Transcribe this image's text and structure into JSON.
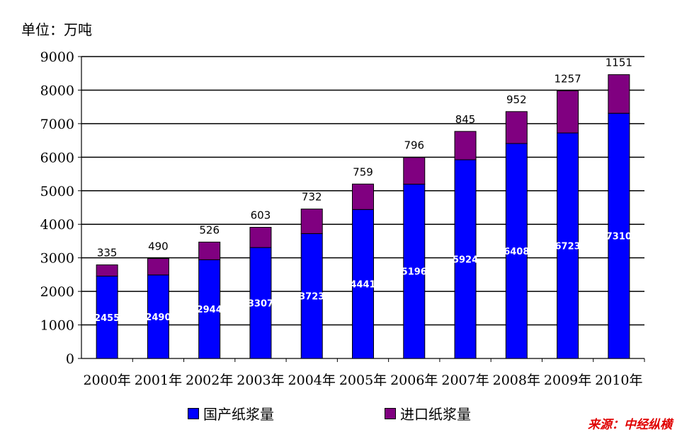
{
  "chart_data": {
    "type": "bar",
    "stacked": true,
    "unit": "单位：万吨",
    "categories": [
      "2000年",
      "2001年",
      "2002年",
      "2003年",
      "2004年",
      "2005年",
      "2006年",
      "2007年",
      "2008年",
      "2009年",
      "2010年"
    ],
    "series": [
      {
        "name": "国产纸浆量",
        "color": "#0000ff",
        "values": [
          2455,
          2490,
          2944,
          3307,
          3723,
          4441,
          5196,
          5924,
          6408,
          6723,
          7310
        ]
      },
      {
        "name": "进口纸浆量",
        "color": "#800080",
        "values": [
          335,
          490,
          526,
          603,
          732,
          759,
          796,
          845,
          952,
          1257,
          1151
        ]
      }
    ],
    "yticks": [
      0,
      1000,
      2000,
      3000,
      4000,
      5000,
      6000,
      7000,
      8000,
      9000
    ],
    "ylim": [
      0,
      9000
    ],
    "grid": true,
    "legend": "bottom"
  },
  "source": "来源：中经纵横"
}
